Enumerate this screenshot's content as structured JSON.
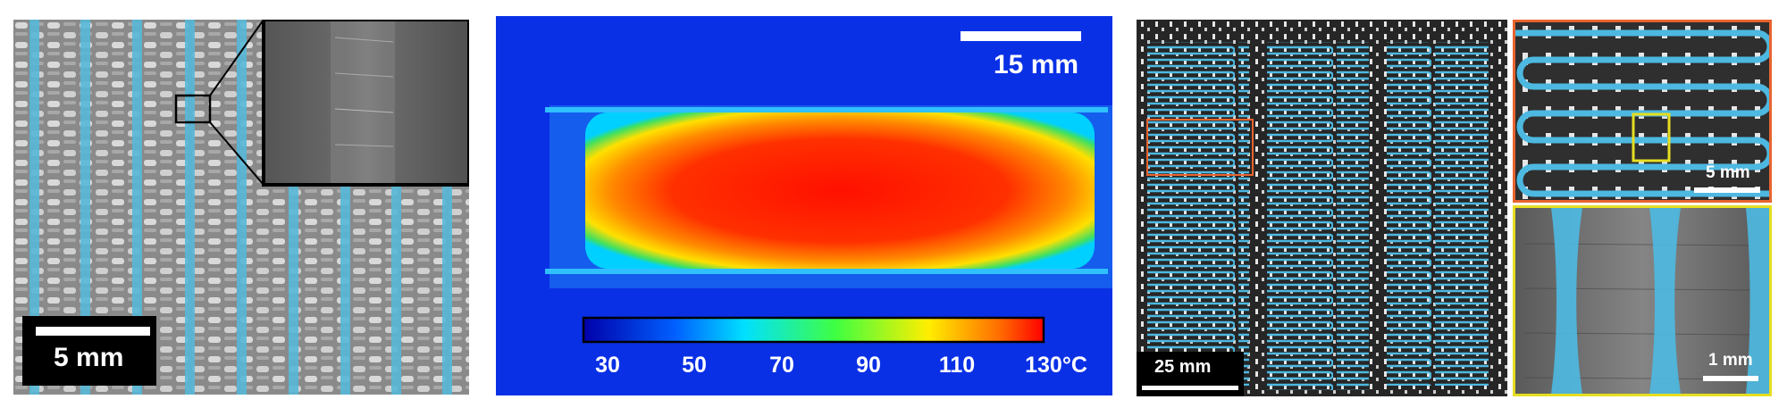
{
  "panel_a": {
    "scale_label": "5 mm",
    "fiber_color": "#58b8d8"
  },
  "panel_b": {
    "scale_label": "15 mm",
    "colorbar_ticks": [
      "30",
      "50",
      "70",
      "90",
      "110",
      "130°C"
    ],
    "colors": {
      "background": "#0a30e6",
      "hot": "#ff1a00",
      "colorbar_low": "#0000aa",
      "colorbar_high": "#ff0000"
    }
  },
  "panel_c": {
    "scale_label": "25 mm",
    "coil_color": "#4db8e0",
    "highlight_color": "#e8642f"
  },
  "panel_d": {
    "scale_label": "5 mm",
    "frame_color": "#e8642f",
    "highlight_color": "#e6de22"
  },
  "panel_e": {
    "scale_label": "1 mm",
    "frame_color": "#e6de22"
  }
}
